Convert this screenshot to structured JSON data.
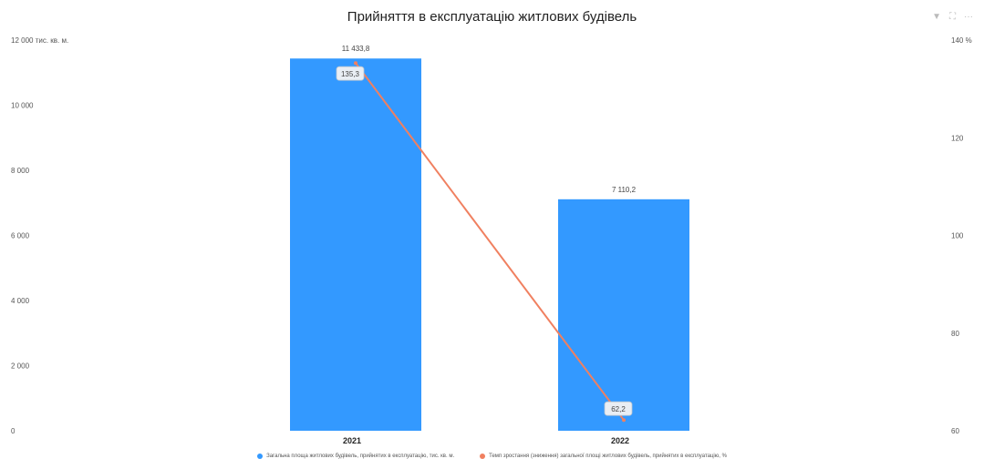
{
  "chart_data": {
    "type": "bar",
    "title": "Прийняття в експлуатацію житлових будівель",
    "categories": [
      "2021",
      "2022"
    ],
    "series": [
      {
        "name": "Загальна площа житлових будівель, прийнятих в експлуатацію, тис. кв. м.",
        "type": "bar",
        "axis": "left",
        "color": "#3399ff",
        "values": [
          11433.8,
          7110.2
        ],
        "labels": [
          "11 433,8",
          "7 110,2"
        ]
      },
      {
        "name": "Темп зростання (зниження) загальної площі житлових будівель, прийнятих в експлуатацію, %",
        "type": "line",
        "axis": "right",
        "color": "#f08060",
        "values": [
          135.3,
          62.2
        ],
        "labels": [
          "135,3",
          "62,2"
        ]
      }
    ],
    "y_left": {
      "ylim": [
        0,
        12000
      ],
      "ticks": [
        0,
        2000,
        4000,
        6000,
        8000,
        10000,
        12000
      ],
      "tick_labels": [
        "0",
        "2 000",
        "4 000",
        "6 000",
        "8 000",
        "10 000",
        "12 000 тис. кв. м."
      ]
    },
    "y_right": {
      "ylim": [
        60,
        140
      ],
      "ticks": [
        60,
        80,
        100,
        120,
        140
      ],
      "tick_labels": [
        "60",
        "80",
        "100",
        "120",
        "140 %"
      ]
    },
    "grid": false,
    "legend": "bottom"
  },
  "toolbar": {
    "filter_icon": "▼",
    "expand_icon": "⛶",
    "more_icon": "···"
  }
}
